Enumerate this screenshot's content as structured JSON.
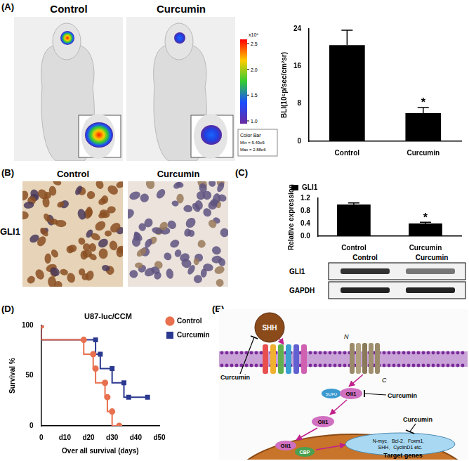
{
  "panel_labels": [
    "(A)",
    "(B)",
    "(C)",
    "(D)",
    "(E)"
  ],
  "mouse_images": {
    "titles": [
      "Control",
      "Curcumin"
    ]
  },
  "color_bar": {
    "unit": "x10⁶",
    "ticks": [
      "2.5",
      "2.0",
      "1.5",
      "1.0"
    ],
    "header": "Color Bar",
    "min_label": "Min = 5.49e5",
    "max_label": "Max = 2.88e6"
  },
  "ihc": {
    "row_label": "GLI1",
    "titles": [
      "Control",
      "Curcumin"
    ]
  },
  "western_blot": {
    "lanes": [
      "Control",
      "Curcumin"
    ],
    "rows": [
      "GLI1",
      "GAPDH"
    ]
  },
  "chart_data": [
    {
      "type": "bar",
      "categories": [
        "Control",
        "Curcumin"
      ],
      "values": [
        20.5,
        6.0
      ],
      "errors": [
        3.2,
        1.2
      ],
      "color": "#000000",
      "y_label": "BLI(10⁵p/sec/cm²sr)",
      "ylim": [
        0,
        24
      ],
      "yticks": [
        0,
        8,
        16,
        24
      ],
      "grid": false,
      "annotations": [
        {
          "category": "Curcumin",
          "text": "*"
        }
      ]
    },
    {
      "type": "bar",
      "categories": [
        "Control",
        "Curcumin"
      ],
      "series": [
        {
          "name": "GLI1",
          "color": "#000000",
          "values": [
            1.0,
            0.4
          ],
          "errors": [
            0.05,
            0.04
          ]
        }
      ],
      "y_label": "Relative expression",
      "ylim": [
        0,
        1.2
      ],
      "yticks": [
        {
          "value": 0,
          "label": "0.0"
        },
        0.4,
        0.8,
        1.2
      ],
      "grid": false,
      "legend": "top-left",
      "annotations": [
        {
          "category": "Curcumin",
          "text": "*"
        }
      ]
    },
    {
      "type": "line",
      "title": "U87-luc/CCM",
      "x_label": "Over all survival (days)",
      "y_label": "Survival %",
      "xlim": [
        0,
        50
      ],
      "xticks": [
        0,
        {
          "value": 10,
          "label": "d10"
        },
        {
          "value": 20,
          "label": "d20"
        },
        {
          "value": 30,
          "label": "d30"
        },
        {
          "value": 40,
          "label": "d40"
        },
        {
          "value": 50,
          "label": "d50"
        }
      ],
      "ylim": [
        0,
        100
      ],
      "yticks": [
        0,
        50,
        100
      ],
      "grid": false,
      "legend": "top-right",
      "line_style": "steps",
      "series": [
        {
          "name": "Control",
          "color": "#e8704f",
          "marker": "circle",
          "x": [
            0,
            18,
            22,
            23,
            27,
            28,
            30,
            33
          ],
          "values": [
            100,
            85.7,
            71.4,
            57.1,
            42.9,
            28.6,
            14.3,
            0
          ]
        },
        {
          "name": "Curcumin",
          "color": "#2b3990",
          "marker": "square",
          "x": [
            0,
            23,
            25,
            30,
            35,
            37,
            45
          ],
          "values": [
            100,
            85.7,
            71.4,
            57.1,
            42.9,
            28.6,
            28.6
          ]
        }
      ]
    }
  ],
  "diagram": {
    "ligand": "SHH",
    "inhibitor_labels": [
      "Curcumin",
      "Curcumin",
      "Curcumin"
    ],
    "termini": [
      "N",
      "C"
    ],
    "cytoplasm": [
      "SUFU",
      "Gli1",
      "Gli1"
    ],
    "nucleus": [
      "Gli1",
      "CBP"
    ],
    "target_gene_list": [
      "N-myc、Bcl-2、Foxm1、",
      "SHH、CyclinD1 etc."
    ],
    "target_label": "Target genes"
  }
}
